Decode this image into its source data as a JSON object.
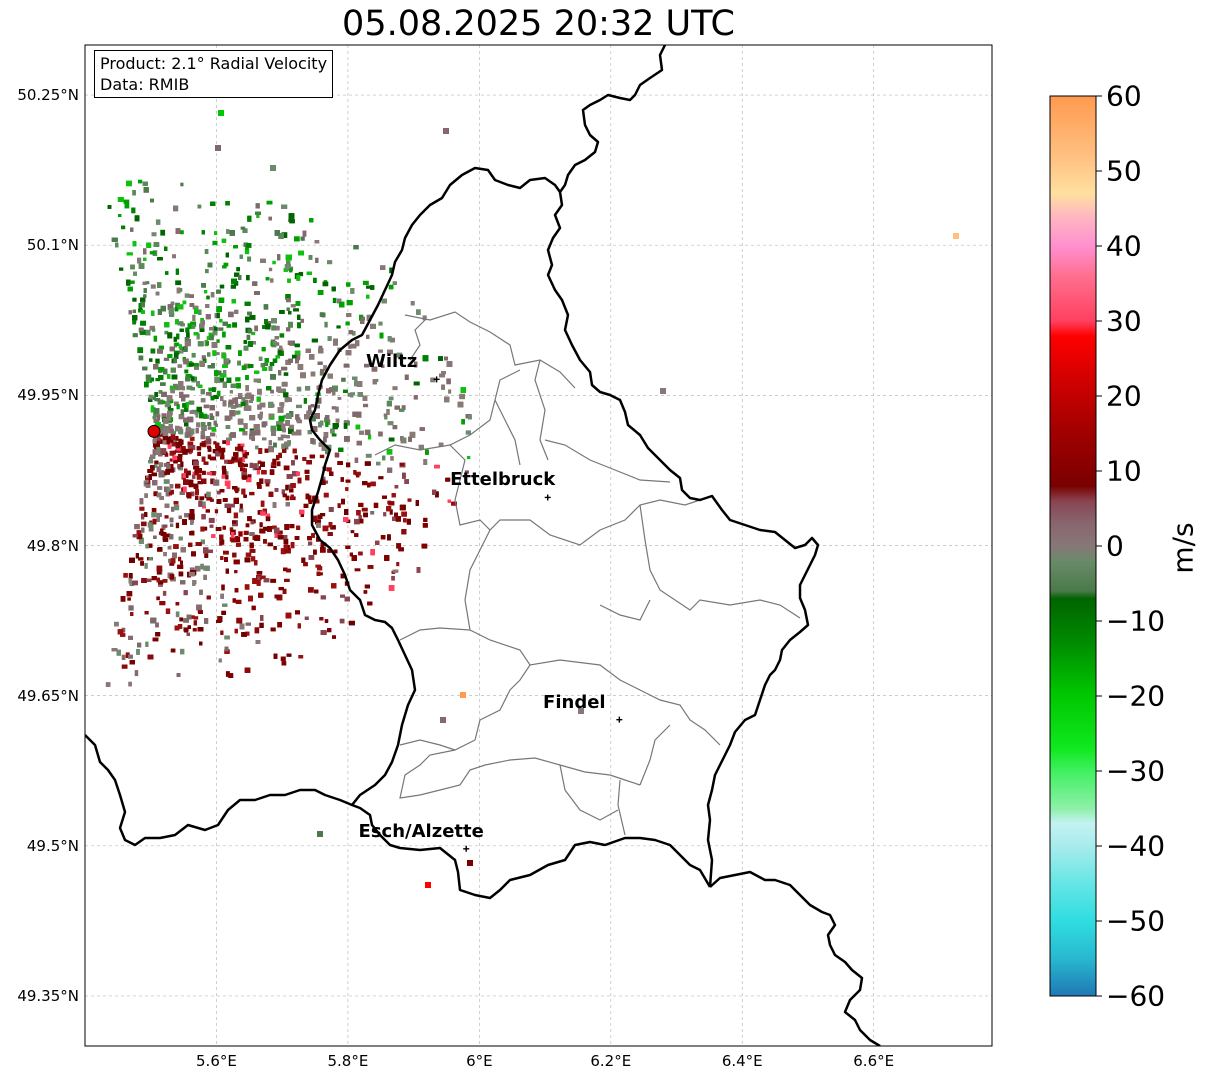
{
  "title": "05.08.2025 20:32 UTC",
  "info": {
    "product": "Product: 2.1° Radial Velocity",
    "data": "Data: RMIB"
  },
  "axes": {
    "lat_ticks": [
      {
        "value": 50.25,
        "label": "50.25°N"
      },
      {
        "value": 50.1,
        "label": "50.1°N"
      },
      {
        "value": 49.95,
        "label": "49.95°N"
      },
      {
        "value": 49.8,
        "label": "49.8°N"
      },
      {
        "value": 49.65,
        "label": "49.65°N"
      },
      {
        "value": 49.5,
        "label": "49.5°N"
      },
      {
        "value": 49.35,
        "label": "49.35°N"
      }
    ],
    "lon_ticks": [
      {
        "value": 5.6,
        "label": "5.6°E"
      },
      {
        "value": 5.8,
        "label": "5.8°E"
      },
      {
        "value": 6.0,
        "label": "6°E"
      },
      {
        "value": 6.2,
        "label": "6.2°E"
      },
      {
        "value": 6.4,
        "label": "6.4°E"
      },
      {
        "value": 6.6,
        "label": "6.6°E"
      }
    ],
    "lon_range": [
      5.4,
      6.78
    ],
    "lat_range": [
      49.3,
      50.3
    ],
    "grid": true
  },
  "cities": [
    {
      "name": "Wiltz",
      "lon": 5.935,
      "lat": 49.966
    },
    {
      "name": "Ettelbruck",
      "lon": 6.104,
      "lat": 49.848
    },
    {
      "name": "Findel",
      "lon": 6.213,
      "lat": 49.626
    },
    {
      "name": "Esch/Alzette",
      "lon": 5.98,
      "lat": 49.497
    }
  ],
  "radar": {
    "lon": 5.505,
    "lat": 49.914,
    "color": "#e00000"
  },
  "colorbar": {
    "unit": "m/s",
    "min": -60,
    "max": 60,
    "ticks": [
      {
        "value": 60,
        "label": "60"
      },
      {
        "value": 50,
        "label": "50"
      },
      {
        "value": 40,
        "label": "40"
      },
      {
        "value": 30,
        "label": "30"
      },
      {
        "value": 20,
        "label": "20"
      },
      {
        "value": 10,
        "label": "10"
      },
      {
        "value": 0,
        "label": "0"
      },
      {
        "value": -10,
        "label": "−10"
      },
      {
        "value": -20,
        "label": "−20"
      },
      {
        "value": -30,
        "label": "−30"
      },
      {
        "value": -40,
        "label": "−40"
      },
      {
        "value": -50,
        "label": "−50"
      },
      {
        "value": -60,
        "label": "−60"
      }
    ],
    "stops": [
      {
        "value": -60,
        "color": "#1f78b4"
      },
      {
        "value": -55,
        "color": "#28b8d0"
      },
      {
        "value": -50,
        "color": "#2fdde0"
      },
      {
        "value": -45,
        "color": "#66e5e5"
      },
      {
        "value": -40,
        "color": "#a8ecec"
      },
      {
        "value": -37,
        "color": "#c4f2f2"
      },
      {
        "value": -35,
        "color": "#8ef0a8"
      },
      {
        "value": -30,
        "color": "#40f060"
      },
      {
        "value": -27,
        "color": "#10e820"
      },
      {
        "value": -20,
        "color": "#00c800"
      },
      {
        "value": -13,
        "color": "#008c00"
      },
      {
        "value": -7,
        "color": "#006400"
      },
      {
        "value": -6,
        "color": "#4a7a4a"
      },
      {
        "value": -2,
        "color": "#6a8a6a"
      },
      {
        "value": 0,
        "color": "#887777"
      },
      {
        "value": 3,
        "color": "#886670"
      },
      {
        "value": 6,
        "color": "#884450"
      },
      {
        "value": 8,
        "color": "#7a0000"
      },
      {
        "value": 15,
        "color": "#a00000"
      },
      {
        "value": 22,
        "color": "#d00000"
      },
      {
        "value": 28,
        "color": "#ff0000"
      },
      {
        "value": 30,
        "color": "#ff4060"
      },
      {
        "value": 36,
        "color": "#ff6f8f"
      },
      {
        "value": 40,
        "color": "#ff90d0"
      },
      {
        "value": 44,
        "color": "#ffb8c0"
      },
      {
        "value": 47,
        "color": "#ffe0a0"
      },
      {
        "value": 52,
        "color": "#ffc080"
      },
      {
        "value": 60,
        "color": "#ff9a50"
      }
    ]
  },
  "colors": {
    "border": "#000000",
    "canton": "#777777",
    "grid": "#bbbbbb"
  }
}
